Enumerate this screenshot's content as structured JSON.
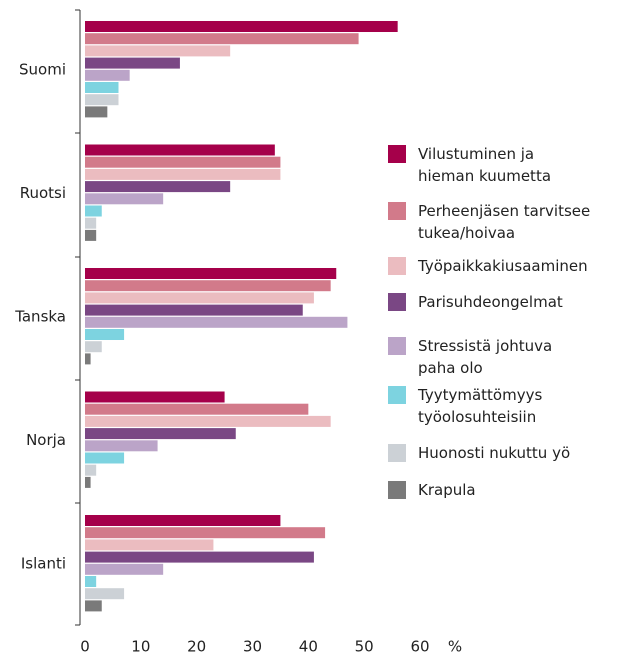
{
  "chart_data": {
    "type": "bar",
    "orientation": "horizontal",
    "categories": [
      "Suomi",
      "Ruotsi",
      "Tanska",
      "Norja",
      "Islanti"
    ],
    "series": [
      {
        "name": "Vilustuminen ja\nhieman kuumetta",
        "color": "#a5004a",
        "values": [
          56,
          34,
          45,
          25,
          35
        ]
      },
      {
        "name": "Perheenjäsen tarvitsee\ntukea/hoivaa",
        "color": "#d27a8a",
        "values": [
          49,
          35,
          44,
          40,
          43
        ]
      },
      {
        "name": "Työpaikkakiusaaminen",
        "color": "#ebbcc0",
        "values": [
          26,
          35,
          41,
          44,
          23
        ]
      },
      {
        "name": "Parisuhdeongelmat",
        "color": "#7a4784",
        "values": [
          17,
          26,
          39,
          27,
          41
        ]
      },
      {
        "name": "Stressistä johtuva\npaha olo",
        "color": "#bba4c8",
        "values": [
          8,
          14,
          47,
          13,
          14
        ]
      },
      {
        "name": "Tyytymättömyys\ntyöolosuhteisiin",
        "color": "#7dd3e0",
        "values": [
          6,
          3,
          7,
          7,
          2
        ]
      },
      {
        "name": "Huonosti nukuttu yö",
        "color": "#ccd1d6",
        "values": [
          6,
          2,
          3,
          2,
          7
        ]
      },
      {
        "name": "Krapula",
        "color": "#7a7a7a",
        "values": [
          4,
          2,
          1,
          1,
          3
        ]
      }
    ],
    "x_label": "%",
    "xlim": [
      0,
      60
    ],
    "xticks": [
      0,
      10,
      20,
      30,
      40,
      50,
      60
    ],
    "legend": "right"
  }
}
